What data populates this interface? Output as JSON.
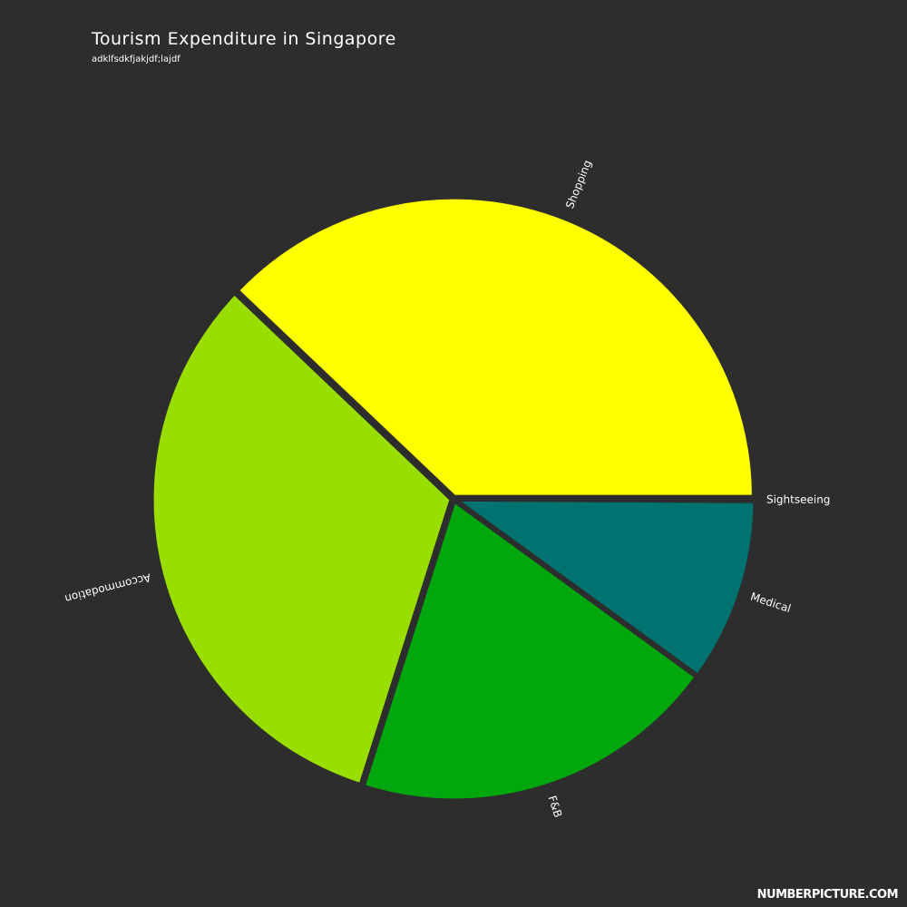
{
  "chart_data": {
    "type": "pie",
    "title": "Tourism Expenditure in Singapore",
    "subtitle": "adklfsdkfjakjdf;lajdf",
    "slices": [
      {
        "label": "Sightseeing",
        "value": 0.1,
        "color": "#2d2d2d"
      },
      {
        "label": "Medical",
        "value": 9.9,
        "color": "#007370"
      },
      {
        "label": "F&B",
        "value": 19.9,
        "color": "#00a80d"
      },
      {
        "label": "Accommodation",
        "value": 32.2,
        "color": "#9ade00"
      },
      {
        "label": "Shopping",
        "value": 37.9,
        "color": "#ffff00"
      }
    ]
  },
  "watermark": "NUMBERPICTURE.COM"
}
